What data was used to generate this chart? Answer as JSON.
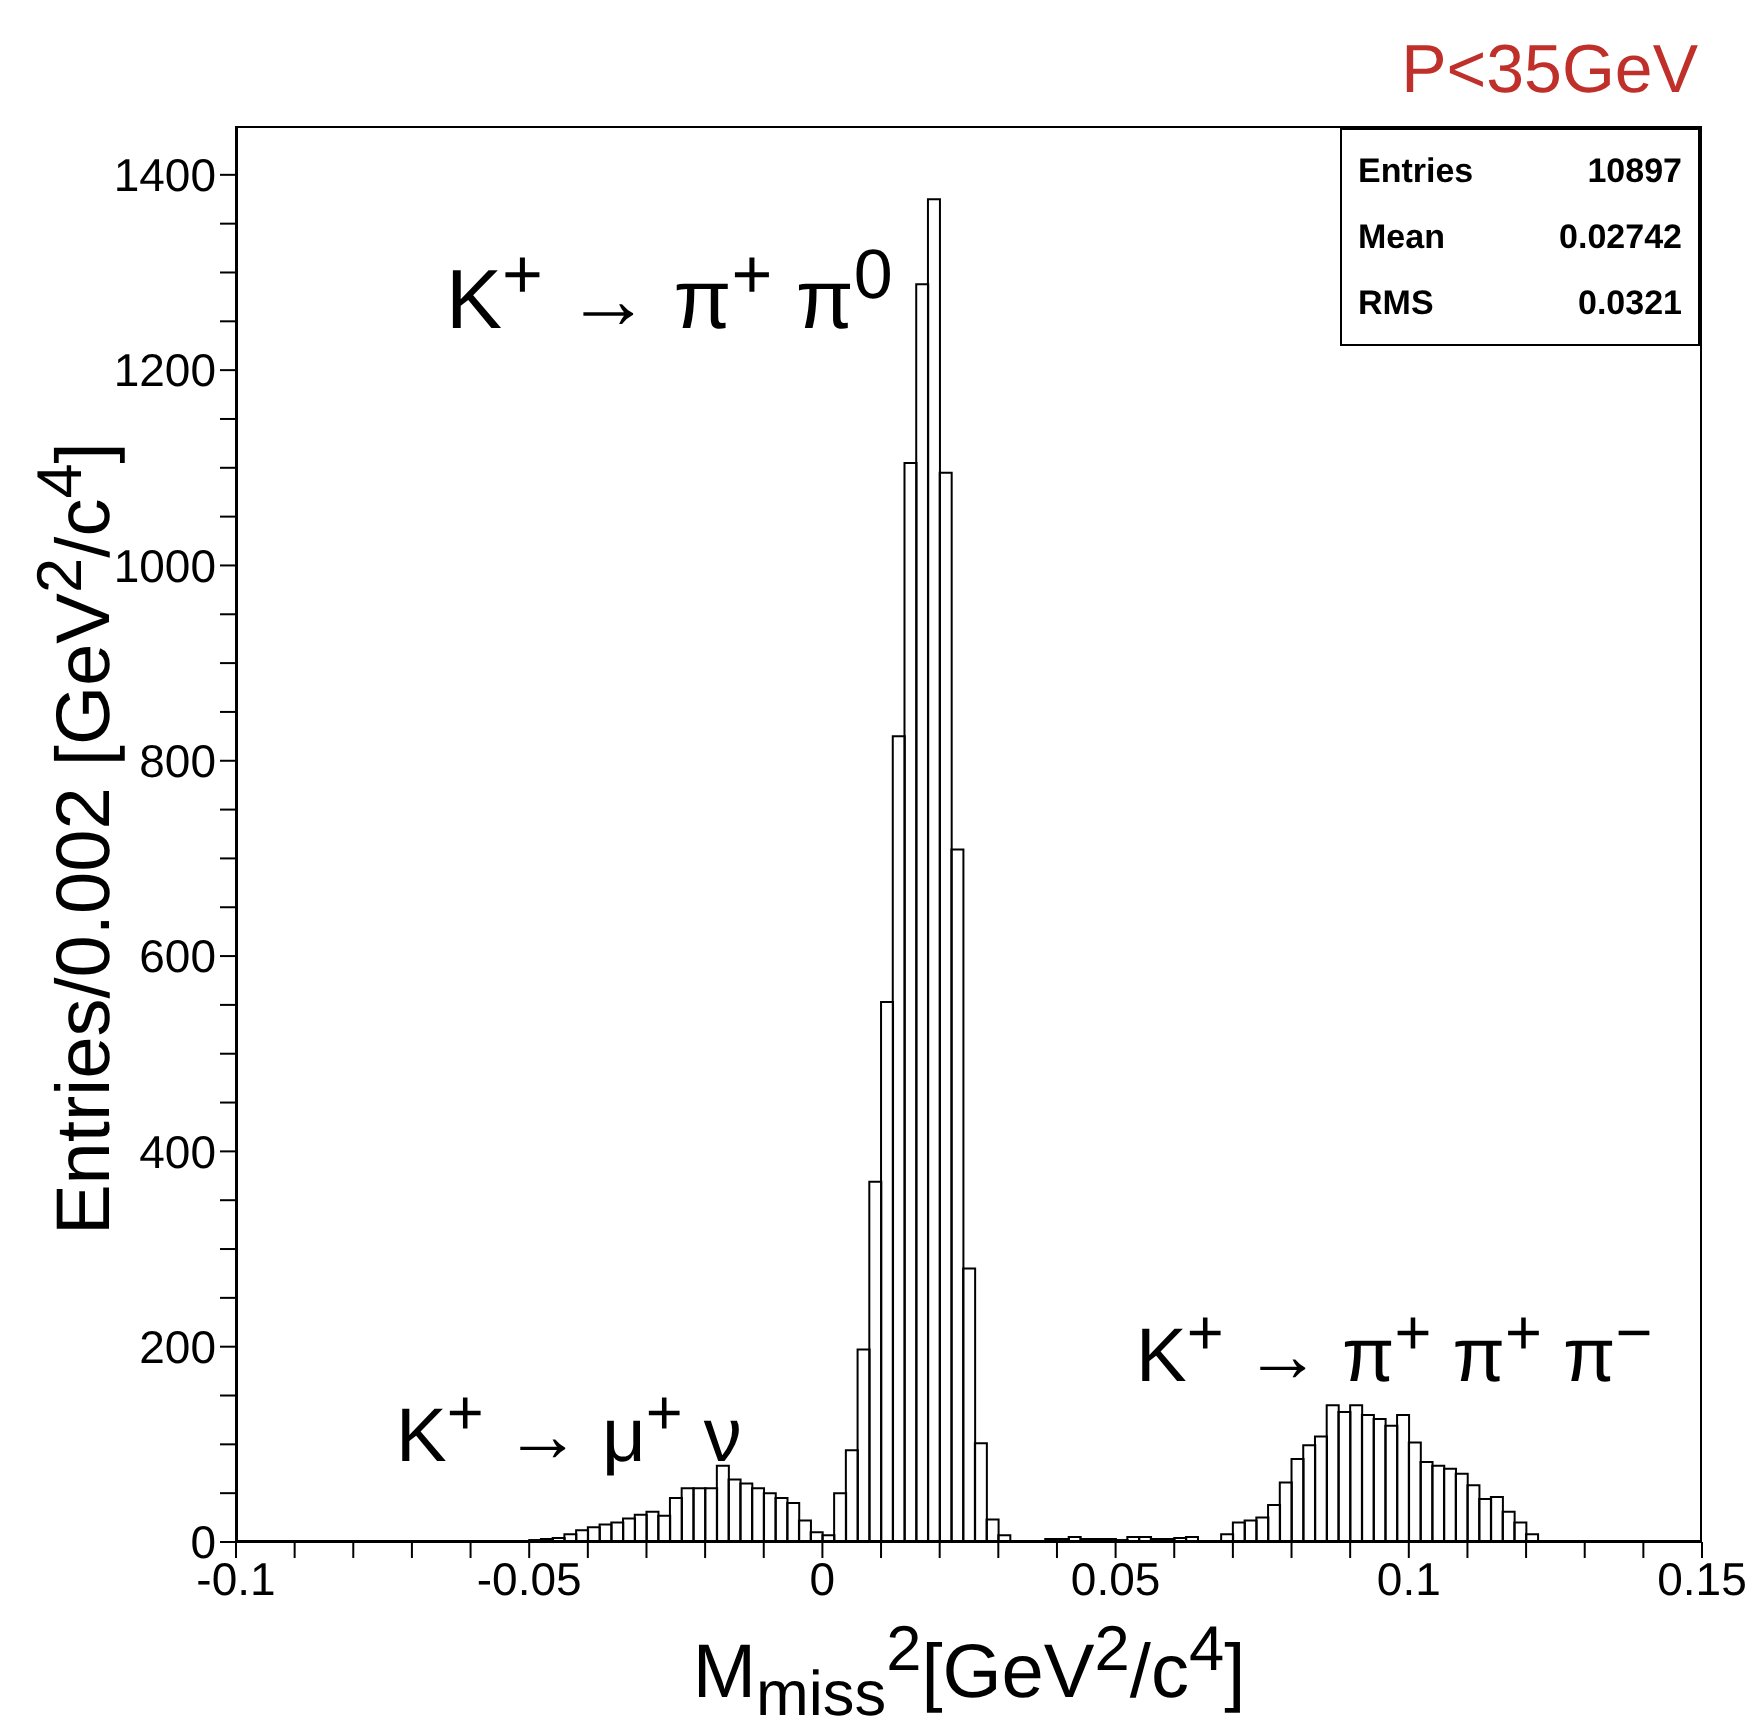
{
  "chart_data": {
    "type": "histogram",
    "title": "P<35GeV",
    "xlabel": "M$_{miss}$$^{2}$[GeV$^{2}$/c$^{4}$]",
    "ylabel": "Entries/0.002 [GeV$^{2}$/c$^{4}$]",
    "bins": [
      -0.1,
      -0.098,
      -0.096,
      -0.094,
      -0.092,
      -0.09,
      -0.088,
      -0.086,
      -0.084,
      -0.082,
      -0.08,
      -0.078,
      -0.076,
      -0.074,
      -0.072,
      -0.07,
      -0.068,
      -0.066,
      -0.064,
      -0.062,
      -0.06,
      -0.058,
      -0.056,
      -0.054,
      -0.052,
      -0.05,
      -0.048,
      -0.046,
      -0.044,
      -0.042,
      -0.04,
      -0.038,
      -0.036,
      -0.034,
      -0.032,
      -0.03,
      -0.028,
      -0.026,
      -0.024,
      -0.022,
      -0.02,
      -0.018,
      -0.016,
      -0.014,
      -0.012,
      -0.01,
      -0.008,
      -0.006,
      -0.004,
      -0.002,
      0,
      0.002,
      0.004,
      0.006,
      0.008,
      0.01,
      0.012,
      0.014,
      0.016,
      0.018,
      0.02,
      0.022,
      0.024,
      0.026,
      0.028,
      0.03,
      0.032,
      0.034,
      0.036,
      0.038,
      0.04,
      0.042,
      0.044,
      0.046,
      0.048,
      0.05,
      0.052,
      0.054,
      0.056,
      0.058,
      0.06,
      0.062,
      0.064,
      0.066,
      0.068,
      0.07,
      0.072,
      0.074,
      0.076,
      0.078,
      0.08,
      0.082,
      0.084,
      0.086,
      0.088,
      0.09,
      0.092,
      0.094,
      0.096,
      0.098,
      0.1,
      0.102,
      0.104,
      0.106,
      0.108,
      0.11,
      0.112,
      0.114,
      0.116,
      0.118,
      0.12,
      0.122,
      0.124,
      0.126,
      0.128,
      0.13,
      0.132,
      0.134,
      0.136,
      0.138,
      0.14,
      0.142,
      0.144,
      0.146,
      0.148,
      0.15
    ],
    "values": [
      0,
      0,
      0,
      0,
      0,
      0,
      0,
      0,
      0,
      0,
      0,
      0,
      0,
      0,
      0,
      0,
      0,
      0,
      0,
      0,
      0,
      0,
      0,
      1,
      1,
      2,
      3,
      4,
      8,
      12,
      15,
      18,
      20,
      24,
      28,
      31,
      27,
      45,
      55,
      55,
      55,
      78,
      64,
      60,
      55,
      50,
      45,
      40,
      22,
      10,
      7,
      50,
      94,
      197,
      369,
      553,
      825,
      1105,
      1288,
      1375,
      1095,
      709,
      280,
      101,
      23,
      7,
      0,
      0,
      1,
      3,
      3,
      5,
      3,
      3,
      3,
      2,
      5,
      5,
      3,
      3,
      4,
      5,
      1,
      1,
      8,
      20,
      22,
      25,
      38,
      61,
      85,
      99,
      108,
      140,
      133,
      140,
      130,
      126,
      119,
      130,
      102,
      82,
      78,
      75,
      70,
      58,
      44,
      46,
      31,
      20,
      8,
      0,
      0,
      0,
      0,
      0,
      0,
      0,
      0,
      0,
      0,
      0,
      0,
      0,
      0
    ],
    "color": "#000000",
    "xlim": [
      -0.1,
      0.15
    ],
    "xticks": [
      -0.1,
      {
        "value": -0.09,
        "label": null
      },
      {
        "value": -0.08,
        "label": null
      },
      {
        "value": -0.07,
        "label": null
      },
      {
        "value": -0.06,
        "label": null
      },
      -0.05,
      {
        "value": -0.04,
        "label": null
      },
      {
        "value": -0.03,
        "label": null
      },
      {
        "value": -0.02,
        "label": null
      },
      {
        "value": -0.01,
        "label": null
      },
      0,
      {
        "value": 0.01,
        "label": null
      },
      {
        "value": 0.02,
        "label": null
      },
      {
        "value": 0.03,
        "label": null
      },
      {
        "value": 0.04,
        "label": null
      },
      0.05,
      {
        "value": 0.06,
        "label": null
      },
      {
        "value": 0.07,
        "label": null
      },
      {
        "value": 0.08,
        "label": null
      },
      {
        "value": 0.09,
        "label": null
      },
      0.1,
      {
        "value": 0.11,
        "label": null
      },
      {
        "value": 0.12,
        "label": null
      },
      {
        "value": 0.13,
        "label": null
      },
      {
        "value": 0.14,
        "label": null
      },
      0.15
    ],
    "ylim": [
      0,
      1450
    ],
    "yticks": [
      0,
      {
        "value": 50,
        "label": null
      },
      {
        "value": 100,
        "label": null
      },
      {
        "value": 150,
        "label": null
      },
      200,
      {
        "value": 250,
        "label": null
      },
      {
        "value": 300,
        "label": null
      },
      {
        "value": 350,
        "label": null
      },
      400,
      {
        "value": 450,
        "label": null
      },
      {
        "value": 500,
        "label": null
      },
      {
        "value": 550,
        "label": null
      },
      600,
      {
        "value": 650,
        "label": null
      },
      {
        "value": 700,
        "label": null
      },
      {
        "value": 750,
        "label": null
      },
      800,
      {
        "value": 850,
        "label": null
      },
      {
        "value": 900,
        "label": null
      },
      {
        "value": 950,
        "label": null
      },
      1000,
      {
        "value": 1050,
        "label": null
      },
      {
        "value": 1100,
        "label": null
      },
      {
        "value": 1150,
        "label": null
      },
      1200,
      {
        "value": 1250,
        "label": null
      },
      {
        "value": 1300,
        "label": null
      },
      {
        "value": 1350,
        "label": null
      },
      1400
    ],
    "grid": false,
    "legend": false,
    "annotations": [
      "K$^{+}$ → π$^{+}$ π$^{0}$",
      "K$^{+}$ → μ$^{+}$ ν",
      "K$^{+}$ → π$^{+}$ π$^{+}$ π$^{−}$",
      "Entries 10897",
      "Mean 0.02742",
      "RMS 0.0321"
    ]
  }
}
